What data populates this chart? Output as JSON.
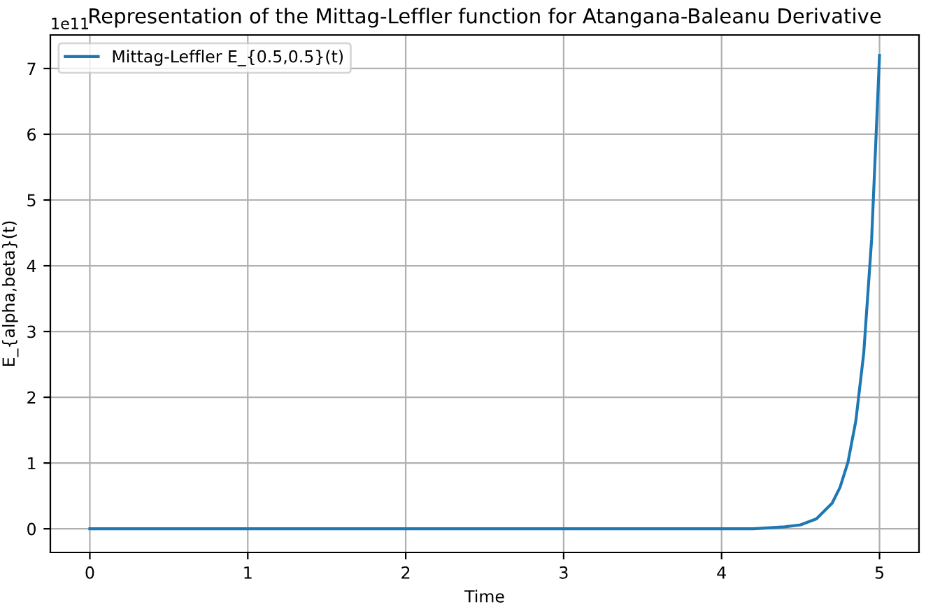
{
  "chart_data": {
    "type": "line",
    "title": "Representation of the Mittag-Leffler function for Atangana-Baleanu Derivative",
    "xlabel": "Time",
    "ylabel": "E_{alpha,beta}(t)",
    "annotations": [
      "1e11"
    ],
    "series": [
      {
        "name": "Mittag-Leffler E_{0.5,0.5}(t)",
        "color": "#1f77b4",
        "x": [
          0,
          0.5,
          1,
          1.5,
          2,
          2.5,
          3,
          3.5,
          4,
          4.2,
          4.4,
          4.5,
          4.6,
          4.7,
          4.75,
          4.8,
          4.85,
          4.9,
          4.95,
          5
        ],
        "values": [
          0,
          0,
          0,
          0,
          0,
          0,
          0,
          0,
          0,
          0,
          0.03,
          0.06,
          0.15,
          0.39,
          0.63,
          1.01,
          1.64,
          2.67,
          4.4,
          7.2
        ]
      }
    ],
    "xlim": [
      -0.25,
      5.25
    ],
    "xticks": [
      0,
      1,
      2,
      3,
      4,
      5
    ],
    "ylim": [
      -0.36,
      7.51
    ],
    "yticks": [
      0,
      1,
      2,
      3,
      4,
      5,
      6,
      7
    ],
    "grid": true,
    "legend": "top left",
    "marker": "none",
    "line_style": "solid"
  }
}
